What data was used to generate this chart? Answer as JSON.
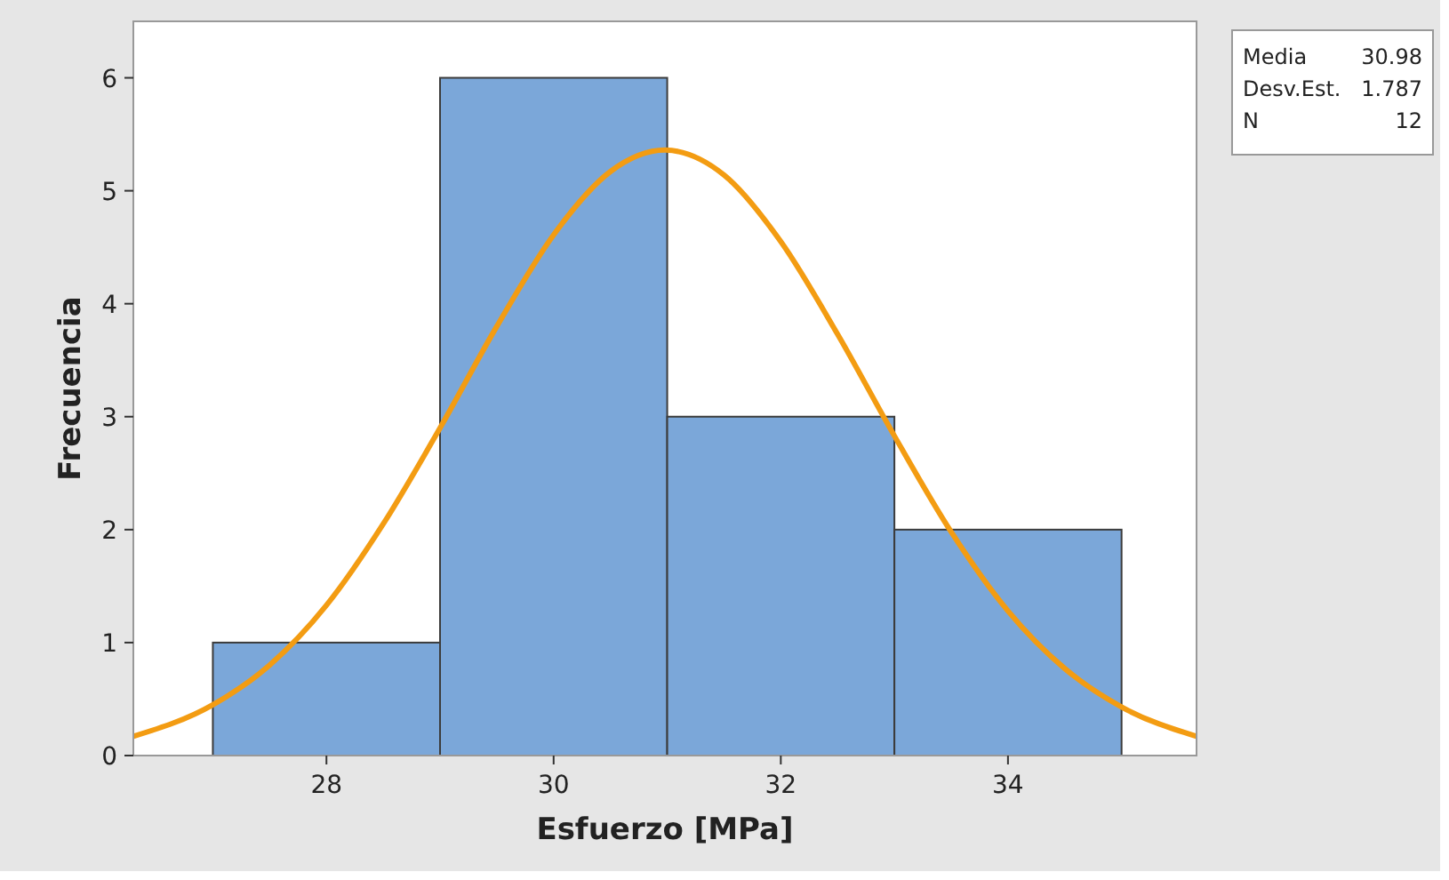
{
  "chart_data": {
    "type": "histogram",
    "xlabel": "Esfuerzo [MPa]",
    "ylabel": "Frecuencia",
    "xlim": [
      26.3,
      35.66
    ],
    "xticks": [
      28,
      30,
      32,
      34
    ],
    "ylim": [
      0,
      6.5
    ],
    "yticks": [
      0,
      1,
      2,
      3,
      4,
      5,
      6
    ],
    "series": [
      {
        "bins": [
          27,
          29,
          31,
          33,
          35
        ],
        "values": [
          1,
          6,
          3,
          2
        ],
        "color": "#7ba7d9"
      },
      {
        "type": "line",
        "color": "#f39c12",
        "x": [
          26.3,
          27,
          27.5,
          28,
          28.5,
          29,
          29.5,
          30,
          30.5,
          30.98,
          31.5,
          32,
          32.5,
          33,
          33.5,
          34,
          34.5,
          35,
          35.66
        ],
        "values": [
          0.17,
          0.45,
          0.8,
          1.33,
          2.05,
          2.9,
          3.8,
          4.61,
          5.17,
          5.36,
          5.14,
          4.55,
          3.73,
          2.83,
          1.98,
          1.28,
          0.77,
          0.43,
          0.17
        ]
      }
    ],
    "annotations": [
      "Media 30.98",
      "Desv.Est. 1.787",
      "N 12"
    ]
  }
}
